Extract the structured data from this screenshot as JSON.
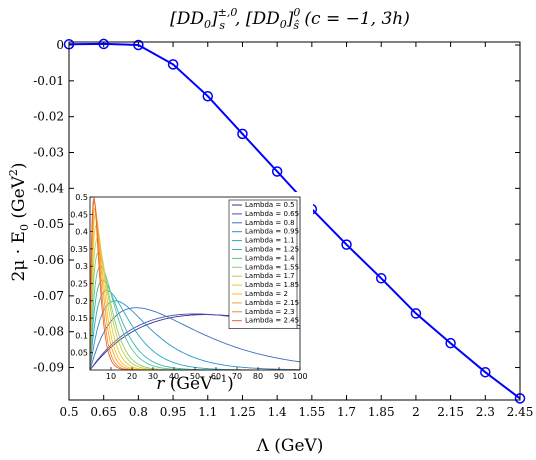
{
  "chart_data": [
    {
      "type": "line",
      "title": "[DD₀]ₛ^{±,0}, [DD₀]_ŝ^0 (c = −1, 3h)",
      "title_parts": {
        "a": "[DD",
        "a_sub": "0",
        "b": "]",
        "b_sup": "±,0",
        "b_sub": "s",
        "c": ", [DD",
        "c_sub": "0",
        "d": "]",
        "d_sup": "0",
        "d_sub": "ŝ",
        "e": " (c = −1, 3h)"
      },
      "xlabel": "Λ (GeV)",
      "ylabel": "2μ · E₀ (GeV²)",
      "ylabel_parts": {
        "a": "2μ · E",
        "a_sub": "0",
        "b": " (GeV",
        "b_sup": "2",
        "c": ")"
      },
      "x_tick_labels": [
        "0.5",
        "0.65",
        "0.8",
        "0.95",
        "1.1",
        "1.25",
        "1.4",
        "1.55",
        "1.7",
        "1.85",
        "2",
        "2.15",
        "2.3",
        "2.45"
      ],
      "y_tick_labels": [
        "0",
        "-0.01",
        "-0.02",
        "-0.03",
        "-0.04",
        "-0.05",
        "-0.06",
        "-0.07",
        "-0.08",
        "-0.09"
      ],
      "xlim": [
        0.5,
        2.45
      ],
      "ylim": [
        -0.0985,
        0.0005
      ],
      "grid": false,
      "color": "#0000ff",
      "series": [
        {
          "x": [
            0.5,
            0.65,
            0.8,
            0.95,
            1.1,
            1.25,
            1.4,
            1.55,
            1.7,
            1.85,
            2.0,
            2.15,
            2.3,
            2.45
          ],
          "y": [
            0.0002,
            0.0003,
            0.0,
            -0.0054,
            -0.0143,
            -0.0248,
            -0.0353,
            -0.0458,
            -0.0557,
            -0.0651,
            -0.0749,
            -0.0832,
            -0.0913,
            -0.0986
          ]
        }
      ]
    },
    {
      "type": "line",
      "xlabel": "r (GeV⁻¹)",
      "xlabel_parts": {
        "a": "r",
        "b": " (GeV",
        "b_sup": "−1",
        "c": ")"
      },
      "x_tick_labels": [
        "10",
        "20",
        "30",
        "40",
        "50",
        "60",
        "70",
        "80",
        "90",
        "100"
      ],
      "y_tick_labels": [
        "0.05",
        "0.1",
        "0.15",
        "0.2",
        "0.25",
        "0.3",
        "0.35",
        "0.4",
        "0.45",
        "0.5"
      ],
      "xlim": [
        0,
        100
      ],
      "ylim": [
        0,
        0.5
      ],
      "legend": "top-right",
      "series": [
        {
          "name": "Lambda = 0.5",
          "color": "#3a2f8f",
          "peak_r": 55,
          "peak_value": 0.16
        },
        {
          "name": "Lambda = 0.65",
          "color": "#4a4fb0",
          "peak_r": 50,
          "peak_value": 0.162
        },
        {
          "name": "Lambda = 0.8",
          "color": "#3a6fc0",
          "peak_r": 22,
          "peak_value": 0.18
        },
        {
          "name": "Lambda = 0.95",
          "color": "#2f8fc8",
          "peak_r": 12,
          "peak_value": 0.2
        },
        {
          "name": "Lambda = 1.1",
          "color": "#27a8c2",
          "peak_r": 8,
          "peak_value": 0.23
        },
        {
          "name": "Lambda = 1.25",
          "color": "#35b8ad",
          "peak_r": 6,
          "peak_value": 0.26
        },
        {
          "name": "Lambda = 1.4",
          "color": "#5cc48f",
          "peak_r": 5,
          "peak_value": 0.3
        },
        {
          "name": "Lambda = 1.55",
          "color": "#8fcc6a",
          "peak_r": 4,
          "peak_value": 0.34
        },
        {
          "name": "Lambda = 1.7",
          "color": "#bccf4b",
          "peak_r": 3.5,
          "peak_value": 0.38
        },
        {
          "name": "Lambda = 1.85",
          "color": "#e3c83a",
          "peak_r": 3,
          "peak_value": 0.42
        },
        {
          "name": "Lambda = 2",
          "color": "#f5bf2c",
          "peak_r": 2.6,
          "peak_value": 0.45
        },
        {
          "name": "Lambda = 2.15",
          "color": "#f7a52a",
          "peak_r": 2.3,
          "peak_value": 0.47
        },
        {
          "name": "Lambda = 2.3",
          "color": "#f3872c",
          "peak_r": 2,
          "peak_value": 0.49
        },
        {
          "name": "Lambda = 2.45",
          "color": "#e8662e",
          "peak_r": 1.8,
          "peak_value": 0.5
        }
      ]
    }
  ]
}
